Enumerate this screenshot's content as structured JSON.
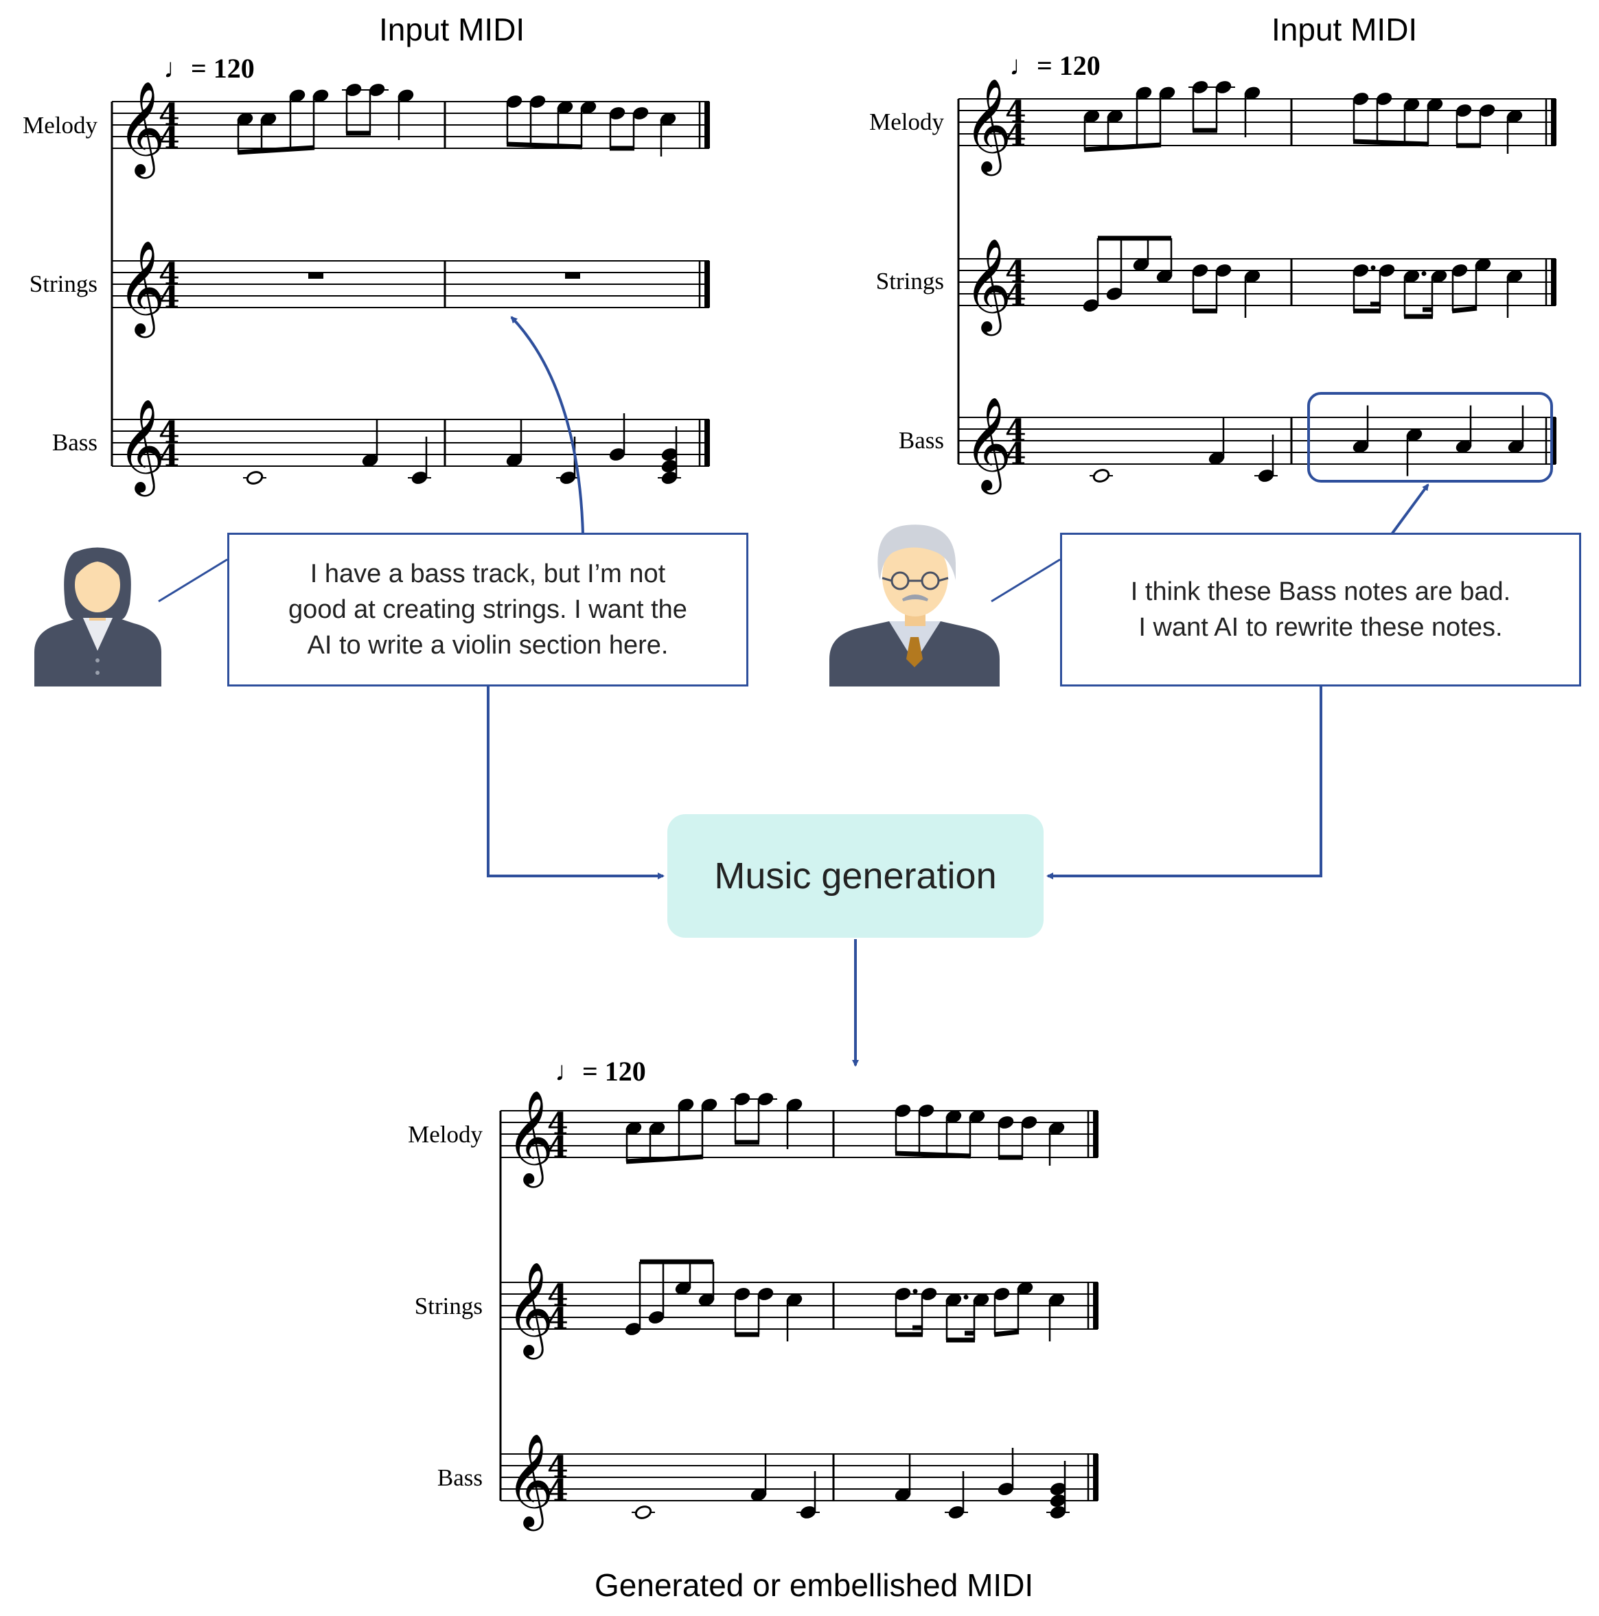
{
  "titles": {
    "input_left": "Input MIDI",
    "input_right": "Input MIDI",
    "output": "Generated or embellished MIDI"
  },
  "scores": {
    "left": {
      "tempo": "= 120",
      "instruments": [
        "Melody",
        "Strings",
        "Bass"
      ]
    },
    "right": {
      "tempo": "= 120",
      "instruments": [
        "Melody",
        "Strings",
        "Bass"
      ]
    },
    "output": {
      "tempo": "= 120",
      "instruments": [
        "Melody",
        "Strings",
        "Bass"
      ]
    }
  },
  "callouts": {
    "left": [
      "I have a bass track, but I’m not",
      "good at creating strings. I want the",
      "AI to write a violin section here."
    ],
    "right": [
      "I think these Bass notes are bad.",
      "I want AI to rewrite these notes."
    ]
  },
  "generation": {
    "label": "Music generation"
  },
  "colors": {
    "accent": "#2e4f9c",
    "box_fill": "#d2f3f0",
    "avatar_body": "#485063",
    "skin": "#fbdcae"
  },
  "icons": [
    "woman-avatar-icon",
    "man-avatar-icon",
    "quarter-note-icon",
    "treble-clef-icon"
  ]
}
